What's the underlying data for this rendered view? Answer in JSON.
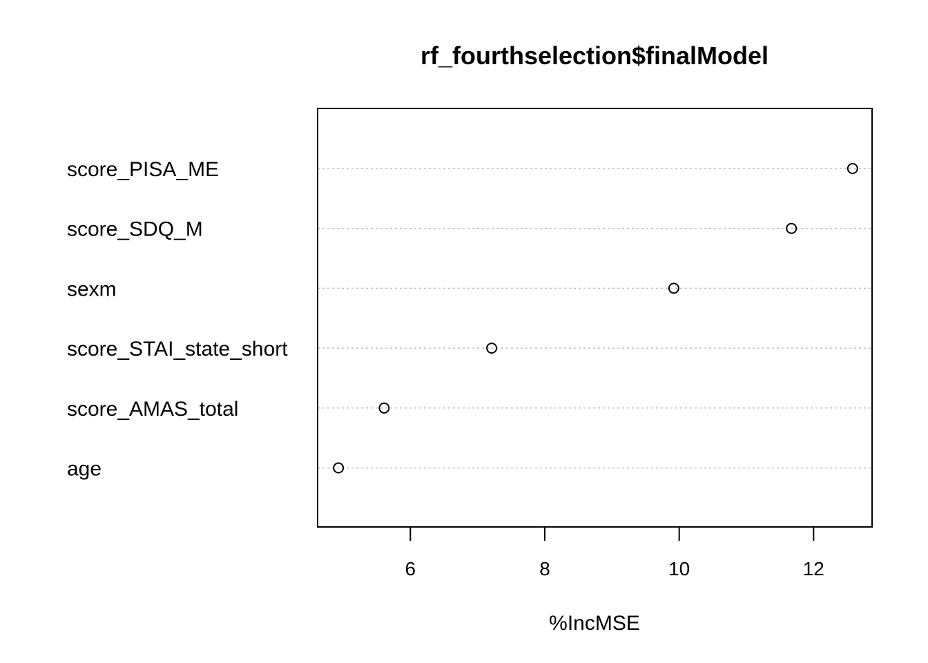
{
  "chart_data": {
    "type": "scatter",
    "subtype": "dotchart",
    "title": "rf_fourthselection$finalModel",
    "xlabel": "%IncMSE",
    "ylabel": "",
    "xlim": [
      4.62,
      12.87
    ],
    "xticks": [
      6,
      8,
      10,
      12
    ],
    "grid": "dotted horizontal guide lines at each variable",
    "legend": "none",
    "marker": "open-circle",
    "colors": {
      "points": "#000000",
      "guides": "#bebebe",
      "frame": "#000000"
    },
    "categories": [
      "score_PISA_ME",
      "score_SDQ_M",
      "sexm",
      "score_STAI_state_short",
      "score_AMAS_total",
      "age"
    ],
    "values": [
      12.58,
      11.67,
      9.92,
      7.21,
      5.61,
      4.93
    ]
  }
}
